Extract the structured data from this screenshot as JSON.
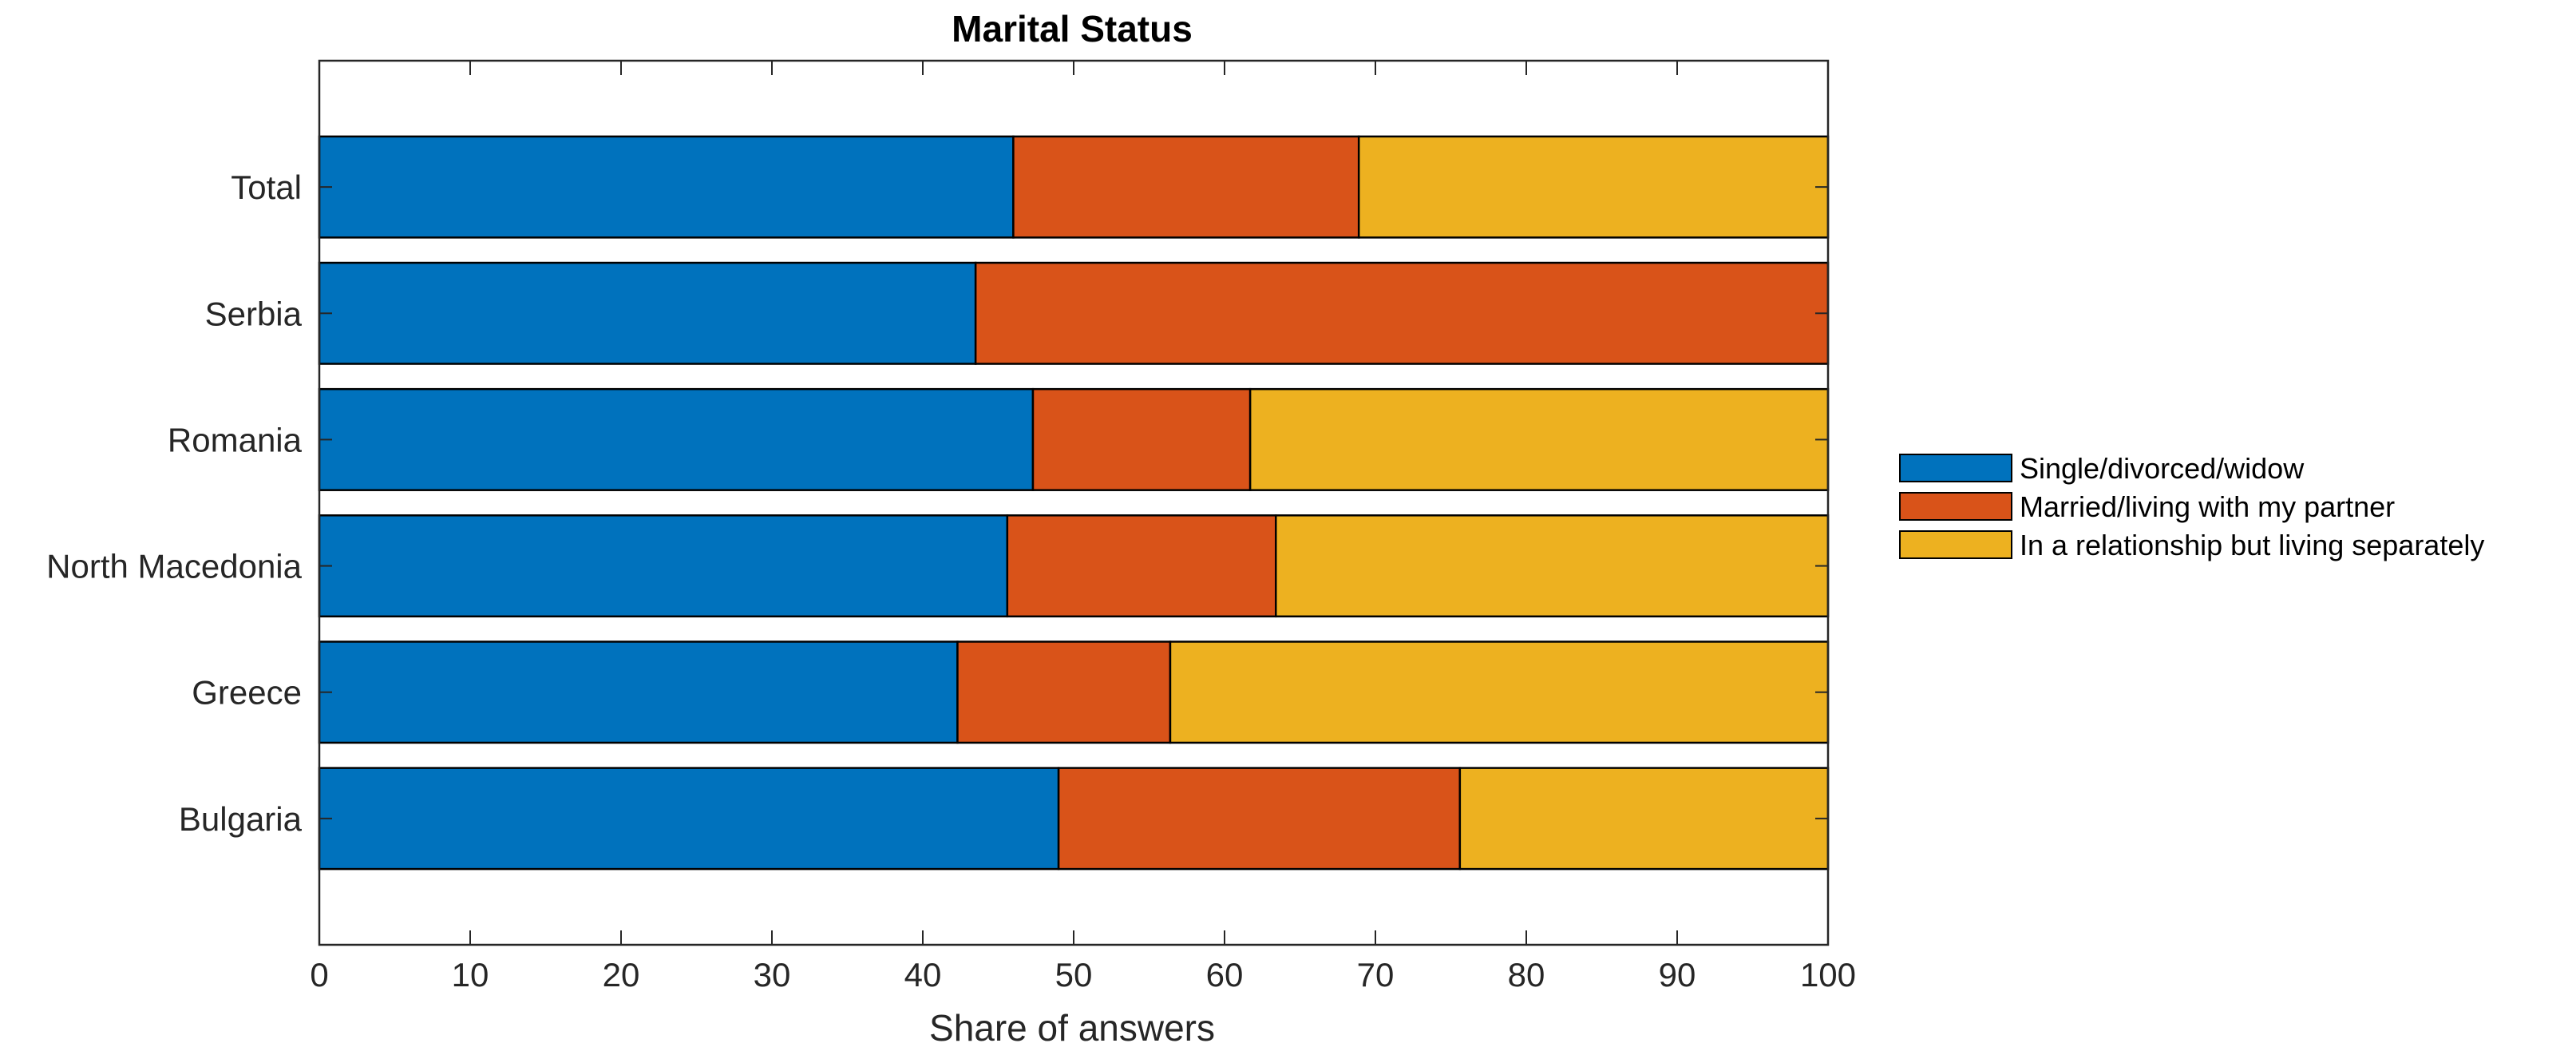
{
  "chart_data": {
    "type": "bar",
    "orientation": "horizontal",
    "stacked": true,
    "title": "Marital Status",
    "xlabel": "Share of answers",
    "ylabel": "",
    "xlim": [
      0,
      100
    ],
    "xticks": [
      0,
      10,
      20,
      30,
      40,
      50,
      60,
      70,
      80,
      90,
      100
    ],
    "grid": false,
    "legend_position": "right",
    "categories": [
      "Total",
      "Serbia",
      "Romania",
      "North Macedonia",
      "Greece",
      "Bulgaria"
    ],
    "series": [
      {
        "name": "Single/divorced/widow",
        "color": "#0072BD",
        "values": [
          46.0,
          43.5,
          47.3,
          45.6,
          42.3,
          49.0
        ]
      },
      {
        "name": "Married/living with my partner",
        "color": "#D95319",
        "values": [
          22.9,
          56.5,
          14.4,
          17.8,
          14.1,
          26.6
        ]
      },
      {
        "name": "In a relationship but living separately",
        "color": "#EDB120",
        "values": [
          31.1,
          0.0,
          38.3,
          36.6,
          43.6,
          24.4
        ]
      }
    ]
  }
}
